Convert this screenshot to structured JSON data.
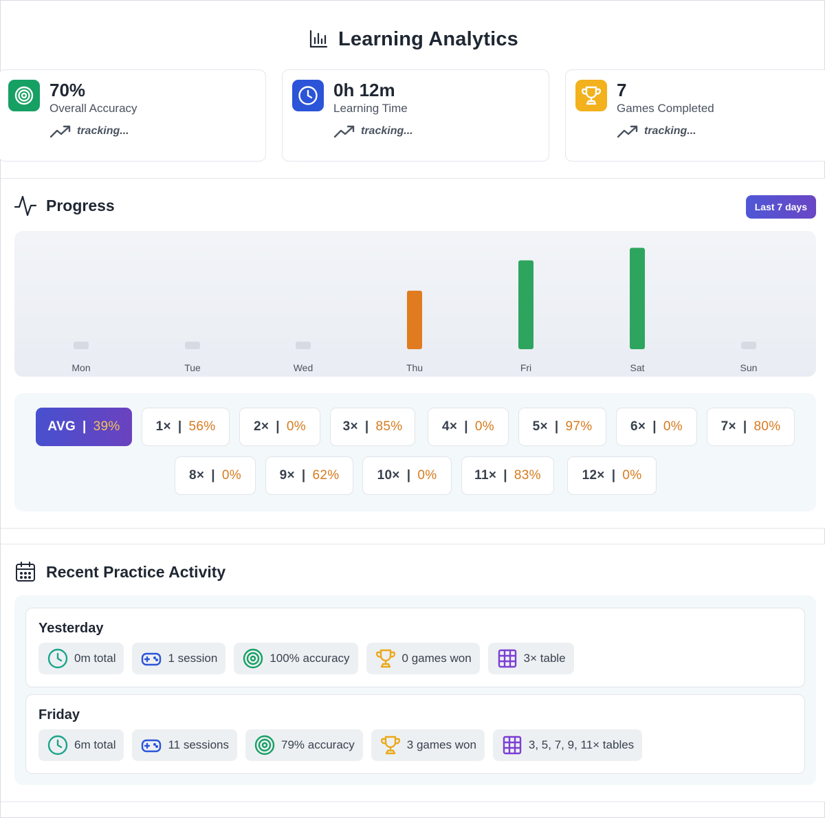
{
  "header": {
    "title": "Learning Analytics",
    "icon": "bar-chart-icon"
  },
  "stats": [
    {
      "value": "70%",
      "label": "Overall Accuracy",
      "trend": "tracking...",
      "icon": "target-icon",
      "color": "#16a063"
    },
    {
      "value": "0h 12m",
      "label": "Learning Time",
      "trend": "tracking...",
      "icon": "clock-icon",
      "color": "#2b54d8"
    },
    {
      "value": "7",
      "label": "Games Completed",
      "trend": "tracking...",
      "icon": "trophy-icon",
      "color": "#f2b11d"
    }
  ],
  "progress": {
    "title": "Progress",
    "range_label": "Last 7 days",
    "chart_data": {
      "type": "bar",
      "categories": [
        "Mon",
        "Tue",
        "Wed",
        "Thu",
        "Fri",
        "Sat",
        "Sun"
      ],
      "values": [
        0,
        0,
        0,
        56,
        85,
        97,
        0
      ],
      "colors": [
        "#d5dae3",
        "#d5dae3",
        "#d5dae3",
        "#e07b1f",
        "#2ea55e",
        "#2ea55e",
        "#d5dae3"
      ],
      "ylim": [
        0,
        100
      ]
    },
    "multipliers": [
      {
        "label": "AVG",
        "pct": "39%",
        "avg": true
      },
      {
        "label": "1×",
        "pct": "56%"
      },
      {
        "label": "2×",
        "pct": "0%"
      },
      {
        "label": "3×",
        "pct": "85%"
      },
      {
        "label": "4×",
        "pct": "0%"
      },
      {
        "label": "5×",
        "pct": "97%"
      },
      {
        "label": "6×",
        "pct": "0%"
      },
      {
        "label": "7×",
        "pct": "80%"
      },
      {
        "label": "8×",
        "pct": "0%"
      },
      {
        "label": "9×",
        "pct": "62%"
      },
      {
        "label": "10×",
        "pct": "0%"
      },
      {
        "label": "11×",
        "pct": "83%"
      },
      {
        "label": "12×",
        "pct": "0%"
      }
    ]
  },
  "activity": {
    "title": "Recent Practice Activity",
    "days": [
      {
        "title": "Yesterday",
        "pills": [
          {
            "text": "0m total",
            "icon": "clock-icon",
            "color": "#1aa58a"
          },
          {
            "text": "1 session",
            "icon": "gamepad-icon",
            "color": "#2b54d8"
          },
          {
            "text": "100% accuracy",
            "icon": "target-icon",
            "color": "#16a063"
          },
          {
            "text": "0 games won",
            "icon": "trophy-icon",
            "color": "#eba81a"
          },
          {
            "text": "3× table",
            "icon": "table-icon",
            "color": "#7b3fd1"
          }
        ]
      },
      {
        "title": "Friday",
        "pills": [
          {
            "text": "6m total",
            "icon": "clock-icon",
            "color": "#1aa58a"
          },
          {
            "text": "11 sessions",
            "icon": "gamepad-icon",
            "color": "#2b54d8"
          },
          {
            "text": "79% accuracy",
            "icon": "target-icon",
            "color": "#16a063"
          },
          {
            "text": "3 games won",
            "icon": "trophy-icon",
            "color": "#eba81a"
          },
          {
            "text": "3, 5, 7, 9, 11× tables",
            "icon": "table-icon",
            "color": "#7b3fd1"
          }
        ]
      }
    ]
  }
}
